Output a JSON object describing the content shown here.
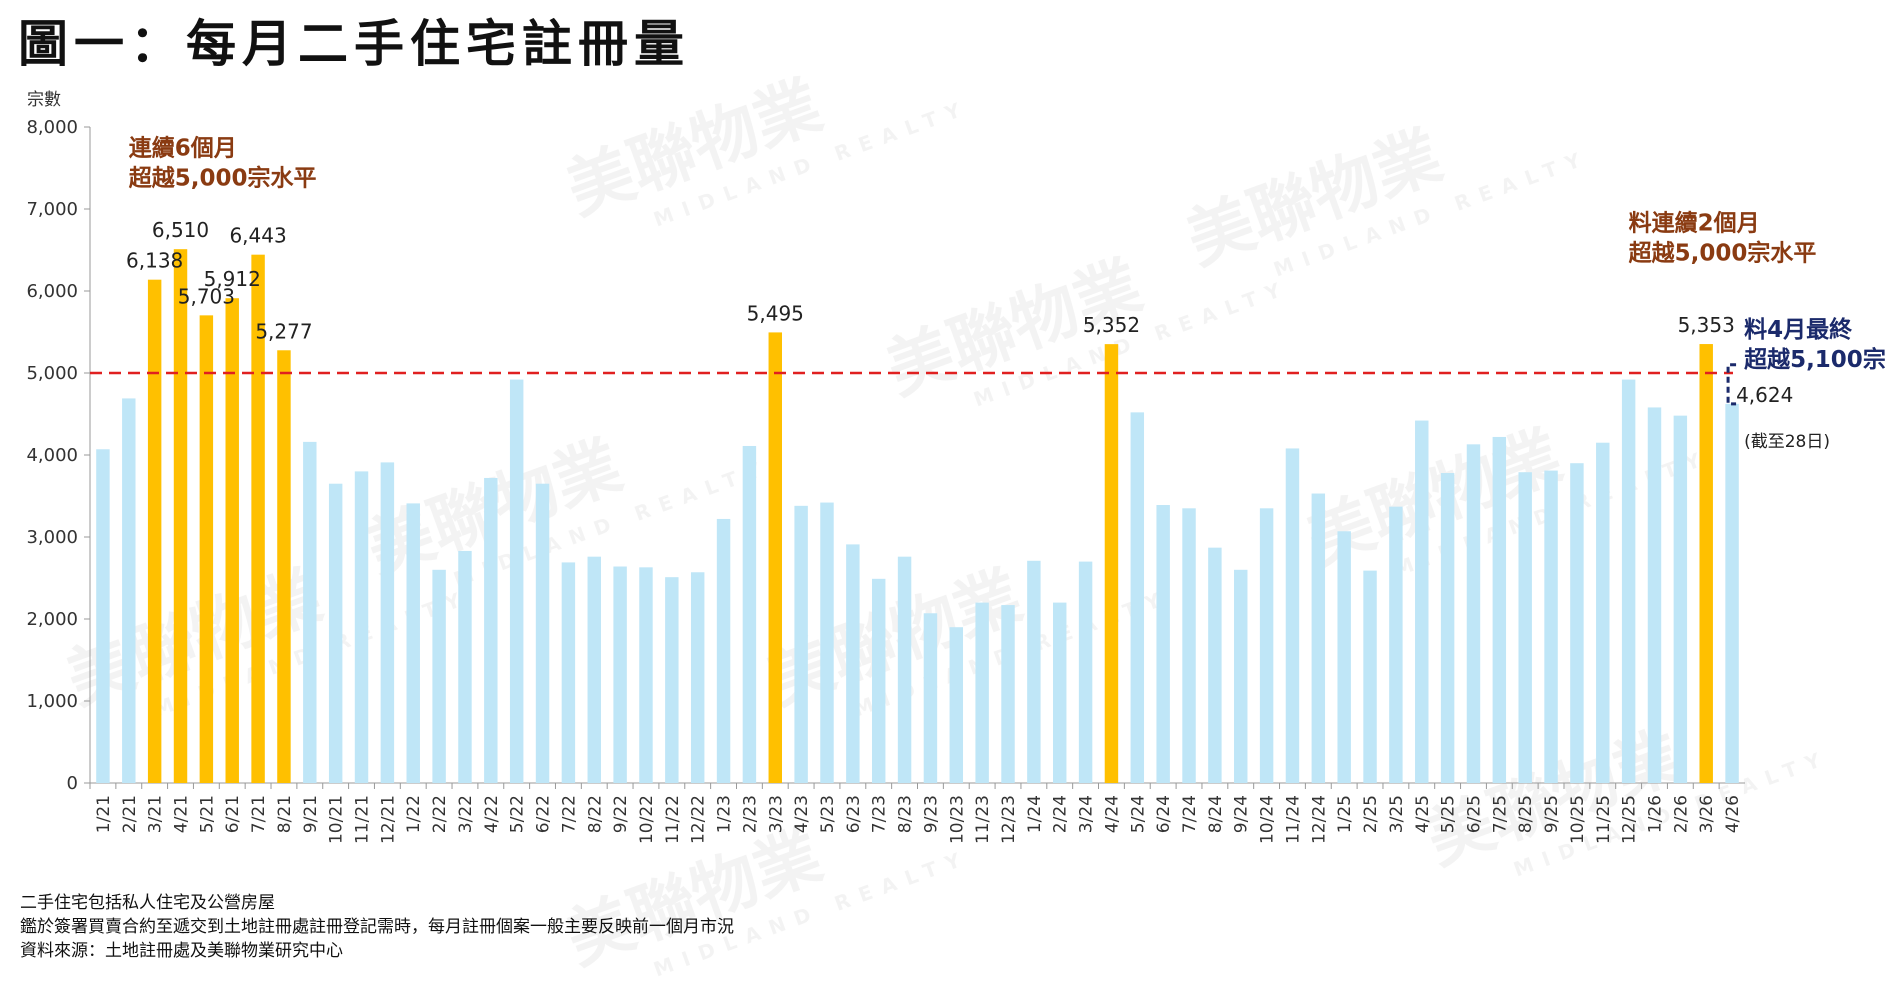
{
  "title": "圖一：每月二手住宅註冊量",
  "watermark": {
    "text": "美聯物業",
    "subtext": "MIDLAND REALTY"
  },
  "notes": [
    "二手住宅包括私人住宅及公營房屋",
    "鑑於簽署買賣合約至遞交到土地註冊處註冊登記需時，每月註冊個案一般主要反映前一個月市況",
    "資料來源：土地註冊處及美聯物業研究中心"
  ],
  "chart_data": {
    "type": "bar",
    "ylabel": "宗數",
    "xlabel": "",
    "ylim": [
      0,
      8000
    ],
    "yticks": [
      "0",
      "1,000",
      "2,000",
      "3,000",
      "4,000",
      "5,000",
      "6,000",
      "7,000",
      "8,000"
    ],
    "categories": [
      "1/21",
      "2/21",
      "3/21",
      "4/21",
      "5/21",
      "6/21",
      "7/21",
      "8/21",
      "9/21",
      "10/21",
      "11/21",
      "12/21",
      "1/22",
      "2/22",
      "3/22",
      "4/22",
      "5/22",
      "6/22",
      "7/22",
      "8/22",
      "9/22",
      "10/22",
      "11/22",
      "12/22",
      "1/23",
      "2/23",
      "3/23",
      "4/23",
      "5/23",
      "6/23",
      "7/23",
      "8/23",
      "9/23",
      "10/23",
      "11/23",
      "12/23",
      "1/24",
      "2/24",
      "3/24",
      "4/24",
      "5/24",
      "6/24",
      "7/24",
      "8/24",
      "9/24",
      "10/24",
      "11/24",
      "12/24",
      "1/25",
      "2/25",
      "3/25",
      "4/25",
      "5/25",
      "6/25",
      "7/25",
      "8/25",
      "9/25",
      "10/25",
      "11/25",
      "12/25",
      "1/26",
      "2/26",
      "3/26",
      "4/26"
    ],
    "values": [
      4070,
      4690,
      6138,
      6510,
      5703,
      5912,
      6443,
      5277,
      4160,
      3650,
      3800,
      3910,
      3410,
      2600,
      2830,
      3720,
      4920,
      3650,
      2690,
      2760,
      2640,
      2630,
      2510,
      2570,
      3220,
      4110,
      5495,
      3380,
      3420,
      2910,
      2490,
      2760,
      2070,
      1900,
      2200,
      2170,
      2710,
      2200,
      2700,
      5352,
      4520,
      3390,
      3350,
      2870,
      2600,
      3350,
      4080,
      3530,
      3070,
      2590,
      3370,
      4420,
      3780,
      4130,
      4220,
      3790,
      3810,
      3900,
      4150,
      4920,
      4580,
      4480,
      5353,
      4624
    ],
    "highlight": [
      false,
      false,
      true,
      true,
      true,
      true,
      true,
      true,
      false,
      false,
      false,
      false,
      false,
      false,
      false,
      false,
      false,
      false,
      false,
      false,
      false,
      false,
      false,
      false,
      false,
      false,
      true,
      false,
      false,
      false,
      false,
      false,
      false,
      false,
      false,
      false,
      false,
      false,
      false,
      true,
      false,
      false,
      false,
      false,
      false,
      false,
      false,
      false,
      false,
      false,
      false,
      false,
      false,
      false,
      false,
      false,
      false,
      false,
      false,
      false,
      false,
      false,
      true,
      false
    ],
    "data_labels": [
      {
        "index": 2,
        "text": "6,138"
      },
      {
        "index": 3,
        "text": "6,510"
      },
      {
        "index": 4,
        "text": "5,703"
      },
      {
        "index": 5,
        "text": "5,912"
      },
      {
        "index": 6,
        "text": "6,443"
      },
      {
        "index": 7,
        "text": "5,277"
      },
      {
        "index": 26,
        "text": "5,495"
      },
      {
        "index": 39,
        "text": "5,352"
      },
      {
        "index": 62,
        "text": "5,353"
      },
      {
        "index": 63,
        "text": "4,624"
      }
    ],
    "reference_line": {
      "value": 5000,
      "style": "dashed",
      "color": "#e02020"
    },
    "annotations": [
      {
        "lines": [
          "連續6個月",
          "超越5,000宗水平"
        ],
        "anchor_index": 1,
        "value": 7650,
        "color": "#8a3b12"
      },
      {
        "lines": [
          "料連續2個月",
          "超越5,000宗水平"
        ],
        "anchor_index": 59,
        "value": 6740,
        "color": "#8a3b12"
      },
      {
        "lines": [
          "料4月最終",
          "超越5,100宗"
        ],
        "anchor_index": 63,
        "value": 5440,
        "color": "#1b2a6b"
      },
      {
        "lines": [
          "(截至28日)"
        ],
        "anchor_index": 63,
        "value": 4100,
        "color": "#222222"
      }
    ],
    "forecast_bracket": {
      "index": 63,
      "from": 4624,
      "to": 5100,
      "color": "#1b2a6b"
    },
    "colors": {
      "normal": "#bfe6f7",
      "highlight": "#ffc000",
      "axis": "#999999"
    },
    "grid": false,
    "legend": "none"
  }
}
